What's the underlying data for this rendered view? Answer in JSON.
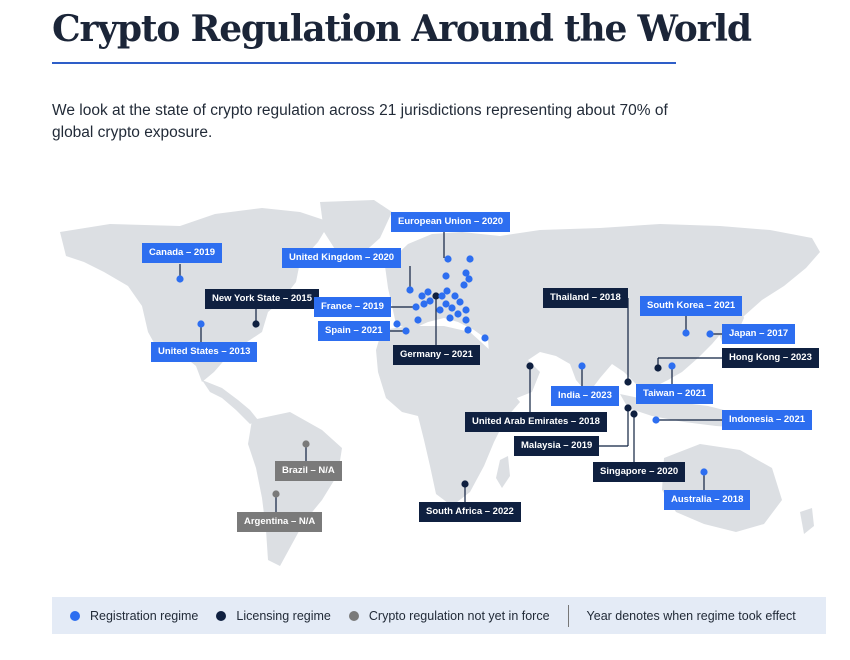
{
  "title": "Crypto Regulation Around the World",
  "intro": "We look at the state of crypto regulation across 21 jurisdictions representing about 70% of global crypto exposure.",
  "colors": {
    "registration": "#2d6ef0",
    "licensing": "#0f2040",
    "not_in_force": "#7a7a7a",
    "land": "#dcdfe3"
  },
  "labels": {
    "canada": "Canada – 2019",
    "united_states": "United States – 2013",
    "new_york": "New York State – 2015",
    "united_kingdom": "United Kingdom – 2020",
    "european_union": "European Union – 2020",
    "france": "France – 2019",
    "spain": "Spain – 2021",
    "germany": "Germany – 2021",
    "thailand": "Thailand – 2018",
    "south_korea": "South Korea – 2021",
    "japan": "Japan – 2017",
    "hong_kong": "Hong Kong – 2023",
    "taiwan": "Taiwan – 2021",
    "india": "India – 2023",
    "uae": "United Arab Emirates – 2018",
    "malaysia": "Malaysia – 2019",
    "indonesia": "Indonesia – 2021",
    "singapore": "Singapore – 2020",
    "australia": "Australia – 2018",
    "south_africa": "South Africa – 2022",
    "brazil": "Brazil – N/A",
    "argentina": "Argentina – N/A"
  },
  "legend": {
    "registration": "Registration regime",
    "licensing": "Licensing regime",
    "not_in_force": "Crypto regulation not yet in force",
    "note": "Year denotes when regime took effect"
  }
}
